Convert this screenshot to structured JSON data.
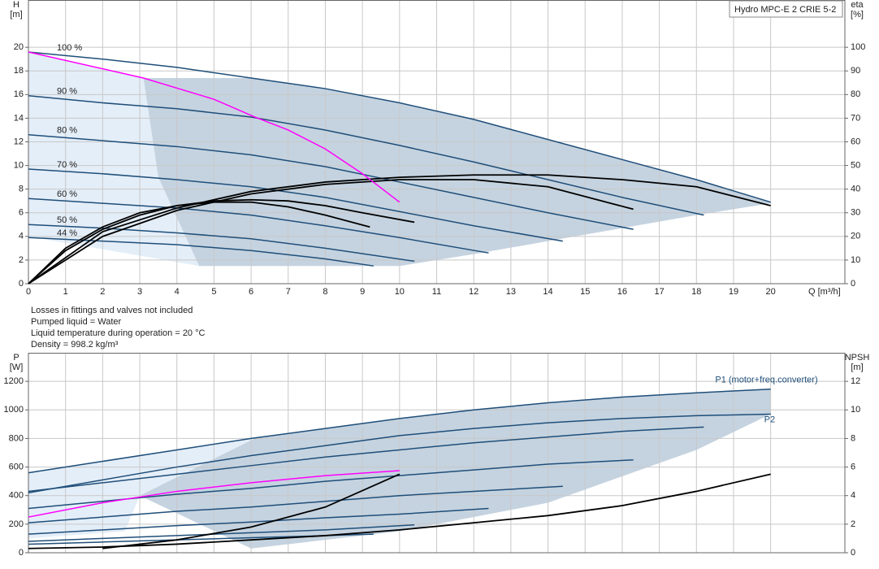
{
  "chart_data": [
    {
      "type": "line",
      "title": "Hydro MPC-E 2 CRIE 5-2",
      "ylabel": "H",
      "yunit": "[m]",
      "y2label": "eta",
      "y2unit": "[%]",
      "xlabel": "Q [m³/h]",
      "xlim": [
        0,
        22
      ],
      "xticks": [
        0,
        1,
        2,
        3,
        4,
        5,
        6,
        7,
        8,
        9,
        10,
        11,
        12,
        13,
        14,
        15,
        16,
        17,
        18,
        19,
        20
      ],
      "ylim": [
        0,
        24
      ],
      "yticks": [
        0,
        2,
        4,
        6,
        8,
        10,
        12,
        14,
        16,
        18,
        20
      ],
      "y2lim": [
        0,
        120
      ],
      "y2ticks": [
        0,
        10,
        20,
        30,
        40,
        50,
        60,
        70,
        80,
        90,
        100
      ],
      "grid": true,
      "areas": [
        {
          "color": "#e4eef8",
          "x": [
            0,
            3.1,
            3.5,
            4.6,
            0
          ],
          "values": [
            19.6,
            17.4,
            9,
            1.5,
            4.0
          ]
        },
        {
          "color": "#c5d3e0",
          "x": [
            3.1,
            6.1,
            8,
            10,
            12,
            14,
            16,
            18,
            20,
            20,
            18,
            16,
            14,
            12,
            10,
            4.6,
            3.5
          ],
          "values": [
            17.4,
            17.4,
            16.5,
            15.3,
            13.9,
            12.2,
            10.5,
            8.8,
            6.9,
            6.8,
            5.8,
            4.7,
            3.6,
            2.5,
            1.5,
            1.5,
            9
          ]
        }
      ],
      "series": [
        {
          "name": "100 %",
          "color": "#1f4e79",
          "x": [
            0,
            2,
            4,
            6,
            8,
            10,
            12,
            14,
            16,
            18,
            20
          ],
          "values": [
            19.6,
            19.0,
            18.3,
            17.4,
            16.5,
            15.3,
            13.9,
            12.2,
            10.5,
            8.8,
            6.9
          ]
        },
        {
          "name": "90 %",
          "color": "#1f4e79",
          "x": [
            0,
            2,
            4,
            6,
            8,
            10,
            12,
            14,
            16,
            18.2
          ],
          "values": [
            15.9,
            15.3,
            14.8,
            14.1,
            13.0,
            11.7,
            10.3,
            8.8,
            7.3,
            5.8
          ]
        },
        {
          "name": "80 %",
          "color": "#1f4e79",
          "x": [
            0,
            2,
            4,
            6,
            8,
            10,
            12,
            14,
            16.3
          ],
          "values": [
            12.6,
            12.1,
            11.6,
            10.9,
            9.9,
            8.6,
            7.3,
            6.0,
            4.6
          ]
        },
        {
          "name": "70 %",
          "color": "#1f4e79",
          "x": [
            0,
            2,
            4,
            6,
            8,
            10,
            12,
            14.4
          ],
          "values": [
            9.7,
            9.3,
            8.8,
            8.2,
            7.3,
            6.1,
            4.9,
            3.6
          ]
        },
        {
          "name": "60 %",
          "color": "#1f4e79",
          "x": [
            0,
            2,
            4,
            6,
            8,
            10,
            12.4
          ],
          "values": [
            7.2,
            6.8,
            6.4,
            5.8,
            4.9,
            3.9,
            2.6
          ]
        },
        {
          "name": "50 %",
          "color": "#1f4e79",
          "x": [
            0,
            2,
            4,
            6,
            8,
            10.4
          ],
          "values": [
            5.0,
            4.7,
            4.3,
            3.8,
            3.0,
            1.9
          ]
        },
        {
          "name": "44 %",
          "color": "#1f4e79",
          "x": [
            0,
            2,
            4,
            6,
            8,
            9.3
          ],
          "values": [
            3.9,
            3.6,
            3.3,
            2.8,
            2.1,
            1.5
          ]
        },
        {
          "color": "#000000",
          "axis": "y2",
          "x": [
            0,
            2,
            4,
            6,
            8,
            10,
            12,
            14,
            16,
            18,
            20
          ],
          "values": [
            0,
            22,
            32,
            39,
            43,
            45,
            46,
            46,
            44,
            41,
            33
          ]
        },
        {
          "color": "#000000",
          "axis": "y2",
          "x": [
            0,
            2,
            4,
            6,
            8,
            10,
            12,
            14,
            16.3
          ],
          "values": [
            0,
            20,
            31,
            38,
            42,
            44,
            44,
            41,
            31.5
          ]
        },
        {
          "color": "#000000",
          "axis": "y2",
          "x": [
            0,
            1,
            2,
            3,
            4,
            5,
            6,
            7,
            8,
            9,
            10.4
          ],
          "values": [
            0,
            14,
            23,
            29,
            33,
            35,
            35.5,
            35,
            33,
            30,
            26
          ]
        },
        {
          "color": "#000000",
          "axis": "y2",
          "x": [
            0,
            1,
            2,
            3,
            4,
            5,
            6,
            7,
            8,
            9.2
          ],
          "values": [
            0,
            15,
            24,
            30,
            33,
            34.5,
            34.5,
            32.5,
            29,
            24
          ]
        },
        {
          "color": "#ff00ff",
          "x": [
            0,
            3.1,
            5,
            6.1,
            7,
            8,
            9,
            10
          ],
          "values": [
            19.6,
            17.4,
            15.6,
            14.1,
            13.0,
            11.4,
            9.3,
            6.9
          ]
        }
      ]
    },
    {
      "type": "line",
      "ylabel": "P",
      "yunit": "[W]",
      "y2label": "NPSH",
      "y2unit": "[m]",
      "xlim": [
        0,
        22
      ],
      "ylim": [
        0,
        1400
      ],
      "yticks": [
        0,
        200,
        400,
        600,
        800,
        1000,
        1200
      ],
      "y2lim": [
        0,
        14
      ],
      "y2ticks": [
        0,
        2,
        4,
        6,
        8,
        10,
        12
      ],
      "grid": true,
      "areas": [
        {
          "color": "#e4eef8",
          "x": [
            0,
            6.1,
            3,
            2.6,
            0
          ],
          "values": [
            560,
            800,
            400,
            150,
            100
          ]
        },
        {
          "color": "#c5d3e0",
          "x": [
            6.1,
            8,
            10,
            12,
            14,
            16,
            18,
            20,
            20,
            18,
            14,
            10,
            6,
            3
          ],
          "values": [
            800,
            870,
            940,
            1000,
            1050,
            1090,
            1120,
            1145,
            970,
            720,
            350,
            150,
            30,
            400
          ]
        }
      ],
      "series": [
        {
          "name": "P1 (motor+freq.converter)",
          "color": "#1f4e79",
          "x": [
            0,
            2,
            4,
            6,
            8,
            10,
            12,
            14,
            16,
            18,
            20
          ],
          "values": [
            560,
            640,
            720,
            800,
            870,
            940,
            1000,
            1050,
            1090,
            1120,
            1145
          ]
        },
        {
          "name": "P2",
          "color": "#1f4e79",
          "x": [
            0,
            2,
            4,
            6,
            8,
            10,
            12,
            14,
            16,
            18,
            20
          ],
          "values": [
            420,
            510,
            600,
            680,
            750,
            820,
            870,
            910,
            940,
            960,
            970
          ]
        },
        {
          "color": "#1f4e79",
          "x": [
            0,
            2,
            4,
            6,
            8,
            10,
            12,
            14,
            16,
            18.2
          ],
          "values": [
            430,
            490,
            550,
            610,
            670,
            720,
            770,
            810,
            850,
            880
          ]
        },
        {
          "color": "#1f4e79",
          "x": [
            0,
            2,
            4,
            6,
            8,
            10,
            12,
            14,
            16.3
          ],
          "values": [
            310,
            360,
            410,
            450,
            500,
            540,
            580,
            620,
            650
          ]
        },
        {
          "color": "#1f4e79",
          "x": [
            0,
            2,
            4,
            6,
            8,
            10,
            12,
            14.4
          ],
          "values": [
            210,
            250,
            290,
            320,
            360,
            400,
            430,
            465
          ]
        },
        {
          "color": "#1f4e79",
          "x": [
            0,
            2,
            4,
            6,
            8,
            10,
            12.4
          ],
          "values": [
            130,
            160,
            190,
            215,
            245,
            270,
            310
          ]
        },
        {
          "color": "#1f4e79",
          "x": [
            0,
            2,
            4,
            6,
            8,
            10.4
          ],
          "values": [
            80,
            100,
            120,
            140,
            160,
            195
          ]
        },
        {
          "color": "#1f4e79",
          "x": [
            0,
            2,
            4,
            6,
            8,
            9.3
          ],
          "values": [
            60,
            75,
            90,
            105,
            120,
            130
          ]
        },
        {
          "color": "#ff00ff",
          "x": [
            0,
            2,
            4,
            6,
            8,
            10
          ],
          "values": [
            250,
            350,
            430,
            490,
            540,
            575
          ]
        },
        {
          "color": "#000000",
          "axis": "y2",
          "x": [
            0,
            2,
            4,
            6,
            8,
            10,
            12,
            14,
            16,
            18,
            20
          ],
          "values": [
            0.3,
            0.4,
            0.6,
            0.9,
            1.2,
            1.6,
            2.1,
            2.6,
            3.3,
            4.3,
            5.5
          ]
        },
        {
          "color": "#000000",
          "axis": "y2",
          "x": [
            2,
            4,
            6,
            8,
            10
          ],
          "values": [
            0.3,
            0.9,
            1.8,
            3.2,
            5.5
          ]
        }
      ]
    }
  ],
  "notes": [
    "Losses in fittings and valves not included",
    "Pumped liquid = Water",
    "Liquid temperature during operation = 20 °C",
    "Density = 998.2 kg/m³"
  ]
}
